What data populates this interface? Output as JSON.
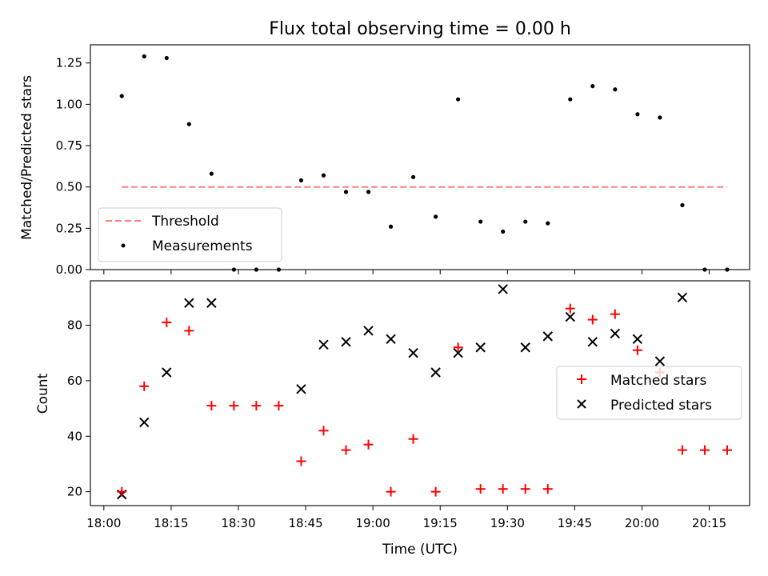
{
  "chart_data": [
    {
      "type": "scatter",
      "title": "Flux total observing time = 0.00 h",
      "xlabel": "",
      "ylabel": "Matched/Predicted stars",
      "ylim": [
        0,
        1.36
      ],
      "yticks": [
        "0.00",
        "0.25",
        "0.50",
        "0.75",
        "1.00",
        "1.25"
      ],
      "ytick_values": [
        0,
        0.25,
        0.5,
        0.75,
        1.0,
        1.25
      ],
      "xlim": [
        "17:57",
        "20:24"
      ],
      "legend": "lower-left",
      "threshold": {
        "name": "Threshold",
        "y": 0.5,
        "x_start": "18:04",
        "x_end": "20:19",
        "color": "#ff7f7f"
      },
      "series": [
        {
          "name": "Measurements",
          "color": "#000000",
          "marker": "dot",
          "x": [
            "18:04",
            "18:09",
            "18:14",
            "18:19",
            "18:24",
            "18:29",
            "18:34",
            "18:39",
            "18:44",
            "18:49",
            "18:54",
            "18:59",
            "19:04",
            "19:09",
            "19:14",
            "19:19",
            "19:24",
            "19:29",
            "19:34",
            "19:39",
            "19:44",
            "19:49",
            "19:54",
            "19:59",
            "20:04",
            "20:09",
            "20:14",
            "20:19"
          ],
          "y": [
            1.05,
            1.29,
            1.28,
            0.88,
            0.58,
            0.0,
            0.0,
            0.0,
            0.54,
            0.57,
            0.47,
            0.47,
            0.26,
            0.56,
            0.32,
            1.03,
            0.29,
            0.23,
            0.29,
            0.28,
            1.03,
            1.11,
            1.09,
            0.94,
            0.92,
            0.39,
            0.0,
            0.0
          ]
        }
      ]
    },
    {
      "type": "scatter",
      "title": "",
      "xlabel": "Time (UTC)",
      "ylabel": "Count",
      "ylim": [
        15,
        96
      ],
      "yticks": [
        "20",
        "40",
        "60",
        "80"
      ],
      "ytick_values": [
        20,
        40,
        60,
        80
      ],
      "xlim": [
        "17:57",
        "20:24"
      ],
      "xticks": [
        "18:00",
        "18:15",
        "18:30",
        "18:45",
        "19:00",
        "19:15",
        "19:30",
        "19:45",
        "20:00",
        "20:15"
      ],
      "legend": "center-right",
      "series": [
        {
          "name": "Matched stars",
          "color": "#ff0000",
          "marker": "plus",
          "x": [
            "18:04",
            "18:09",
            "18:14",
            "18:19",
            "18:24",
            "18:29",
            "18:34",
            "18:39",
            "18:44",
            "18:49",
            "18:54",
            "18:59",
            "19:04",
            "19:09",
            "19:14",
            "19:19",
            "19:24",
            "19:29",
            "19:34",
            "19:39",
            "19:44",
            "19:49",
            "19:54",
            "19:59",
            "20:04",
            "20:09",
            "20:14",
            "20:19"
          ],
          "y": [
            20,
            58,
            81,
            78,
            51,
            51,
            51,
            51,
            31,
            42,
            35,
            37,
            20,
            39,
            20,
            72,
            21,
            21,
            21,
            21,
            86,
            82,
            84,
            71,
            63,
            35,
            35,
            35
          ]
        },
        {
          "name": "Predicted stars",
          "color": "#000000",
          "marker": "x",
          "x": [
            "18:04",
            "18:09",
            "18:14",
            "18:19",
            "18:24",
            "18:44",
            "18:49",
            "18:54",
            "18:59",
            "19:04",
            "19:09",
            "19:14",
            "19:19",
            "19:24",
            "19:29",
            "19:34",
            "19:39",
            "19:44",
            "19:49",
            "19:54",
            "19:59",
            "20:04",
            "20:09"
          ],
          "y": [
            19,
            45,
            63,
            88,
            88,
            57,
            73,
            74,
            78,
            75,
            70,
            63,
            70,
            72,
            93,
            72,
            76,
            83,
            74,
            77,
            75,
            67,
            90
          ]
        }
      ]
    }
  ]
}
